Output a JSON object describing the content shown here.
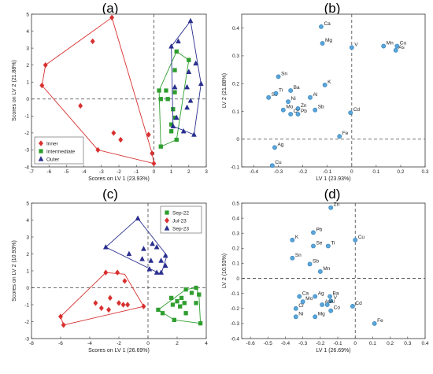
{
  "chart_data": [
    {
      "panel": "(a)",
      "type": "scatter",
      "xlabel": "Scores on LV 1 (23.93%)",
      "ylabel": "Scores on LV 2 (21.88%)",
      "xlim": [
        -7,
        3
      ],
      "ylim": [
        -4,
        5
      ],
      "xticks": [
        -7,
        -6,
        -5,
        -4,
        -3,
        -2,
        -1,
        0,
        1,
        2,
        3
      ],
      "yticks": [
        -4,
        -3,
        -2,
        -1,
        0,
        1,
        2,
        3,
        4,
        5
      ],
      "legend": {
        "placement": "bottom-left",
        "entries": [
          "Inner",
          "Intermediate",
          "Outer"
        ]
      },
      "series": [
        {
          "name": "Inner",
          "marker": "diamond",
          "color": "#d93030",
          "points": [
            [
              -2.4,
              4.8
            ],
            [
              -3.5,
              3.4
            ],
            [
              -6.2,
              2.0
            ],
            [
              -6.4,
              0.8
            ],
            [
              -4.2,
              -0.4
            ],
            [
              -3.2,
              -3.0
            ],
            [
              -2.3,
              -2.0
            ],
            [
              -1.9,
              -2.4
            ],
            [
              -0.3,
              -2.1
            ],
            [
              -0.1,
              -3.2
            ],
            [
              0.0,
              -3.8
            ]
          ],
          "hull": [
            [
              -2.4,
              4.8
            ],
            [
              -0.1,
              -3.2
            ],
            [
              0.0,
              -3.8
            ],
            [
              -3.2,
              -3.0
            ],
            [
              -6.4,
              0.8
            ],
            [
              -6.2,
              2.0
            ]
          ]
        },
        {
          "name": "Intermediate",
          "marker": "square",
          "color": "#2e9e2e",
          "points": [
            [
              1.3,
              2.8
            ],
            [
              2.0,
              2.3
            ],
            [
              1.2,
              1.7
            ],
            [
              0.3,
              0.5
            ],
            [
              0.7,
              0.5
            ],
            [
              0.4,
              0.0
            ],
            [
              0.8,
              0.0
            ],
            [
              1.2,
              0.4
            ],
            [
              1.1,
              -0.6
            ],
            [
              1.2,
              -1.1
            ],
            [
              1.0,
              -1.5
            ],
            [
              1.0,
              -1.9
            ],
            [
              1.3,
              -2.4
            ],
            [
              0.4,
              -2.8
            ]
          ],
          "hull": [
            [
              1.3,
              2.8
            ],
            [
              2.0,
              2.3
            ],
            [
              1.3,
              -2.4
            ],
            [
              0.4,
              -2.8
            ],
            [
              0.3,
              0.5
            ]
          ]
        },
        {
          "name": "Outer",
          "marker": "triangle",
          "color": "#2a2f8f",
          "points": [
            [
              2.1,
              4.6
            ],
            [
              1.4,
              3.4
            ],
            [
              1.0,
              3.1
            ],
            [
              2.4,
              2.1
            ],
            [
              2.0,
              1.6
            ],
            [
              2.7,
              0.9
            ],
            [
              1.9,
              0.7
            ],
            [
              1.2,
              0.7
            ],
            [
              2.1,
              -0.1
            ],
            [
              1.9,
              -0.5
            ],
            [
              1.3,
              -1.1
            ],
            [
              1.1,
              -1.6
            ],
            [
              1.7,
              -1.9
            ],
            [
              2.3,
              -2.1
            ]
          ],
          "hull": [
            [
              2.1,
              4.6
            ],
            [
              2.7,
              0.9
            ],
            [
              2.3,
              -2.1
            ],
            [
              1.1,
              -1.6
            ],
            [
              1.0,
              3.1
            ]
          ]
        }
      ]
    },
    {
      "panel": "(b)",
      "type": "scatter",
      "xlabel": "LV 1 (23.93%)",
      "ylabel": "LV 2 (21.88%)",
      "xlim": [
        -0.45,
        0.3
      ],
      "ylim": [
        -0.1,
        0.45
      ],
      "xticks": [
        -0.4,
        -0.3,
        -0.2,
        -0.1,
        0,
        0.1,
        0.2,
        0.3
      ],
      "yticks": [
        -0.1,
        0,
        0.1,
        0.2,
        0.3,
        0.4
      ],
      "color": "#5aa5d9",
      "points": [
        {
          "label": "Ca",
          "x": -0.125,
          "y": 0.405
        },
        {
          "label": "Mg",
          "x": -0.12,
          "y": 0.345
        },
        {
          "label": "V",
          "x": 0.0,
          "y": 0.33
        },
        {
          "label": "Co",
          "x": 0.185,
          "y": 0.335
        },
        {
          "label": "Mn",
          "x": 0.13,
          "y": 0.335
        },
        {
          "label": "As",
          "x": 0.18,
          "y": 0.32
        },
        {
          "label": "Sn",
          "x": -0.3,
          "y": 0.225
        },
        {
          "label": "K",
          "x": -0.11,
          "y": 0.195
        },
        {
          "label": "Ba",
          "x": -0.25,
          "y": 0.175
        },
        {
          "label": "Se",
          "x": -0.34,
          "y": 0.15
        },
        {
          "label": "Ti",
          "x": -0.31,
          "y": 0.165
        },
        {
          "label": "Al",
          "x": -0.17,
          "y": 0.15
        },
        {
          "label": "Ni",
          "x": -0.26,
          "y": 0.135
        },
        {
          "label": "Mo",
          "x": -0.28,
          "y": 0.105
        },
        {
          "label": "Zn",
          "x": -0.22,
          "y": 0.11
        },
        {
          "label": "Sb",
          "x": -0.15,
          "y": 0.105
        },
        {
          "label": "Cr",
          "x": -0.25,
          "y": 0.09
        },
        {
          "label": "Pb",
          "x": -0.22,
          "y": 0.09
        },
        {
          "label": "Cd",
          "x": -0.005,
          "y": 0.095
        },
        {
          "label": "Fe",
          "x": -0.05,
          "y": 0.01
        },
        {
          "label": "Ag",
          "x": -0.315,
          "y": -0.03
        },
        {
          "label": "Cu",
          "x": -0.325,
          "y": -0.095
        }
      ]
    },
    {
      "panel": "(c)",
      "type": "scatter",
      "xlabel": "Scores on LV 1 (26.69%)",
      "ylabel": "Scores on LV 2 (10.93%)",
      "xlim": [
        -8,
        4
      ],
      "ylim": [
        -3,
        5
      ],
      "xticks": [
        -8,
        -6,
        -4,
        -2,
        0,
        2,
        4
      ],
      "yticks": [
        -3,
        -2,
        -1,
        0,
        1,
        2,
        3,
        4,
        5
      ],
      "legend": {
        "placement": "top-right",
        "entries": [
          "Sep-22",
          "Jul-23",
          "Sep-23"
        ]
      },
      "series": [
        {
          "name": "Sep-22",
          "marker": "square",
          "color": "#2e9e2e",
          "points": [
            [
              3.3,
              0.0
            ],
            [
              2.6,
              -0.1
            ],
            [
              3.0,
              -0.3
            ],
            [
              3.5,
              -0.4
            ],
            [
              1.6,
              -0.6
            ],
            [
              2.3,
              -0.6
            ],
            [
              2.0,
              -0.8
            ],
            [
              3.3,
              -0.9
            ],
            [
              2.5,
              -0.9
            ],
            [
              1.7,
              -1.0
            ],
            [
              2.2,
              -1.1
            ],
            [
              0.7,
              -1.3
            ],
            [
              1.0,
              -1.5
            ],
            [
              2.6,
              -1.5
            ],
            [
              3.6,
              -2.1
            ],
            [
              1.8,
              -1.9
            ]
          ],
          "hull": [
            [
              2.6,
              -0.1
            ],
            [
              3.3,
              0.0
            ],
            [
              3.5,
              -0.4
            ],
            [
              3.6,
              -2.1
            ],
            [
              1.8,
              -1.9
            ],
            [
              0.7,
              -1.3
            ]
          ]
        },
        {
          "name": "Jul-23",
          "marker": "diamond",
          "color": "#d93030",
          "points": [
            [
              -2.9,
              0.9
            ],
            [
              -2.1,
              0.9
            ],
            [
              -1.6,
              0.4
            ],
            [
              -3.6,
              -0.9
            ],
            [
              -2.6,
              -0.6
            ],
            [
              -2.0,
              -0.9
            ],
            [
              -1.7,
              -1.0
            ],
            [
              -1.4,
              -1.0
            ],
            [
              -3.2,
              -1.2
            ],
            [
              -2.7,
              -1.3
            ],
            [
              -0.3,
              -1.1
            ],
            [
              -6.0,
              -1.7
            ],
            [
              -5.8,
              -2.2
            ]
          ],
          "hull": [
            [
              -2.9,
              0.9
            ],
            [
              -1.6,
              0.8
            ],
            [
              -0.3,
              -1.1
            ],
            [
              -5.8,
              -2.2
            ],
            [
              -6.0,
              -1.7
            ]
          ]
        },
        {
          "name": "Sep-23",
          "marker": "triangle",
          "color": "#2a2f8f",
          "points": [
            [
              -0.7,
              4.1
            ],
            [
              -2.9,
              2.4
            ],
            [
              0.3,
              2.6
            ],
            [
              0.6,
              2.4
            ],
            [
              -0.3,
              2.3
            ],
            [
              -1.3,
              2.0
            ],
            [
              0.2,
              1.6
            ],
            [
              -0.4,
              1.7
            ],
            [
              1.2,
              1.9
            ],
            [
              0.9,
              1.6
            ],
            [
              1.2,
              1.3
            ],
            [
              0.6,
              0.9
            ],
            [
              0.9,
              0.9
            ],
            [
              0.1,
              1.1
            ]
          ],
          "hull": [
            [
              -0.7,
              4.1
            ],
            [
              1.3,
              1.9
            ],
            [
              0.9,
              0.8
            ],
            [
              -2.9,
              2.4
            ]
          ]
        }
      ]
    },
    {
      "panel": "(d)",
      "type": "scatter",
      "xlabel": "LV 1 (26.69%)",
      "ylabel": "LV 2 (10.93%)",
      "xlim": [
        -0.65,
        0.4
      ],
      "ylim": [
        -0.4,
        0.5
      ],
      "xticks": [
        -0.6,
        -0.5,
        -0.4,
        -0.3,
        -0.2,
        -0.1,
        0,
        0.1,
        0.2,
        0.3,
        0.4
      ],
      "yticks": [
        -0.4,
        -0.3,
        -0.2,
        -0.1,
        0,
        0.1,
        0.2,
        0.3,
        0.4,
        0.5
      ],
      "color": "#5aa5d9",
      "points": [
        {
          "label": "Zn",
          "x": -0.14,
          "y": 0.47
        },
        {
          "label": "Pb",
          "x": -0.24,
          "y": 0.305
        },
        {
          "label": "K",
          "x": -0.36,
          "y": 0.255
        },
        {
          "label": "Cu",
          "x": 0.0,
          "y": 0.255
        },
        {
          "label": "Se",
          "x": -0.24,
          "y": 0.215
        },
        {
          "label": "Ti",
          "x": -0.155,
          "y": 0.215
        },
        {
          "label": "Sn",
          "x": -0.36,
          "y": 0.135
        },
        {
          "label": "Sb",
          "x": -0.26,
          "y": 0.095
        },
        {
          "label": "Mn",
          "x": -0.2,
          "y": 0.045
        },
        {
          "label": "Ca",
          "x": -0.32,
          "y": -0.12
        },
        {
          "label": "Ag",
          "x": -0.23,
          "y": -0.12
        },
        {
          "label": "Ba",
          "x": -0.145,
          "y": -0.12
        },
        {
          "label": "Mo",
          "x": -0.3,
          "y": -0.155
        },
        {
          "label": "V",
          "x": -0.14,
          "y": -0.15
        },
        {
          "label": "As",
          "x": -0.19,
          "y": -0.175
        },
        {
          "label": "Al",
          "x": -0.16,
          "y": -0.175
        },
        {
          "label": "Cd",
          "x": -0.015,
          "y": -0.185
        },
        {
          "label": "Cr",
          "x": -0.34,
          "y": -0.2
        },
        {
          "label": "Co",
          "x": -0.14,
          "y": -0.215
        },
        {
          "label": "Ni",
          "x": -0.34,
          "y": -0.255
        },
        {
          "label": "Mg",
          "x": -0.23,
          "y": -0.255
        },
        {
          "label": "Fe",
          "x": 0.11,
          "y": -0.3
        }
      ]
    }
  ]
}
